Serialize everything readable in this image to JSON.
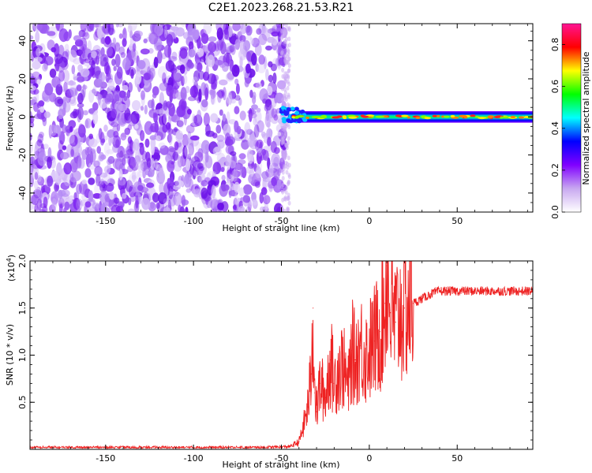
{
  "title": "C2E1.2023.268.21.53.R21",
  "chart_data": [
    {
      "type": "heatmap",
      "xlabel": "Height of straight line (km)",
      "ylabel": "Frequency (Hz)",
      "xlim": [
        -193,
        93
      ],
      "ylim": [
        -50,
        49
      ],
      "xticks": [
        -150,
        -100,
        -50,
        0,
        50
      ],
      "xtick_labels": [
        "-150",
        "-100",
        "-50",
        "0",
        "50"
      ],
      "yticks": [
        -40,
        -20,
        0,
        20,
        40
      ],
      "ytick_labels": [
        "-40",
        "-20",
        "0",
        "20",
        "40"
      ],
      "noise_region_x": [
        -193,
        -48
      ],
      "signal_band": {
        "x": [
          -50,
          93
        ],
        "center_hz": 0,
        "halfwidth_hz": 3
      },
      "colorbar": {
        "label": "Normalized spectral amplitude",
        "range": [
          0,
          0.9
        ],
        "ticks": [
          0.0,
          0.2,
          0.4,
          0.6,
          0.8
        ],
        "tick_labels": [
          "0.0",
          "0.2",
          "0.4",
          "0.6",
          "0.8"
        ],
        "colormap": [
          "#ffffff",
          "#c8a8f0",
          "#8000ff",
          "#0000ff",
          "#00ffff",
          "#00ff00",
          "#ffff00",
          "#ff0000",
          "#ff1493"
        ]
      }
    },
    {
      "type": "line",
      "xlabel": "Height of straight line (km)",
      "ylabel": "SNR (10 * v/v)",
      "multiplier_label": "(x10",
      "multiplier_exp": "4",
      "multiplier_close": ")",
      "xlim": [
        -193,
        93
      ],
      "ylim": [
        0,
        2.0
      ],
      "xticks": [
        -150,
        -100,
        -50,
        0,
        50
      ],
      "xtick_labels": [
        "-150",
        "-100",
        "-50",
        "0",
        "50"
      ],
      "yticks": [
        0.5,
        1.0,
        1.5,
        2.0
      ],
      "ytick_labels": [
        "0.5",
        "1.0",
        "1.5",
        "2.0"
      ],
      "color": "#ee2222",
      "series": [
        {
          "x": [
            -193,
            -150,
            -100,
            -60,
            -45,
            -40,
            -38,
            -35,
            -33,
            -32,
            -31,
            -30,
            -28,
            -25,
            -22,
            -20,
            -18,
            -15,
            -12,
            -10,
            -8,
            -5,
            -2,
            0,
            3,
            6,
            9,
            10,
            12,
            15,
            18,
            20,
            25,
            30,
            35,
            40,
            50,
            60,
            70,
            80,
            93
          ],
          "y": [
            0.02,
            0.02,
            0.02,
            0.02,
            0.03,
            0.08,
            0.2,
            0.45,
            0.8,
            1.5,
            0.6,
            0.4,
            0.7,
            0.55,
            0.95,
            0.7,
            0.85,
            0.9,
            0.65,
            1.05,
            0.95,
            1.1,
            1.0,
            1.05,
            1.15,
            1.25,
            1.55,
            1.95,
            1.45,
            1.35,
            1.45,
            1.5,
            1.55,
            1.6,
            1.65,
            1.68,
            1.68,
            1.68,
            1.68,
            1.68,
            1.68
          ]
        }
      ]
    }
  ]
}
